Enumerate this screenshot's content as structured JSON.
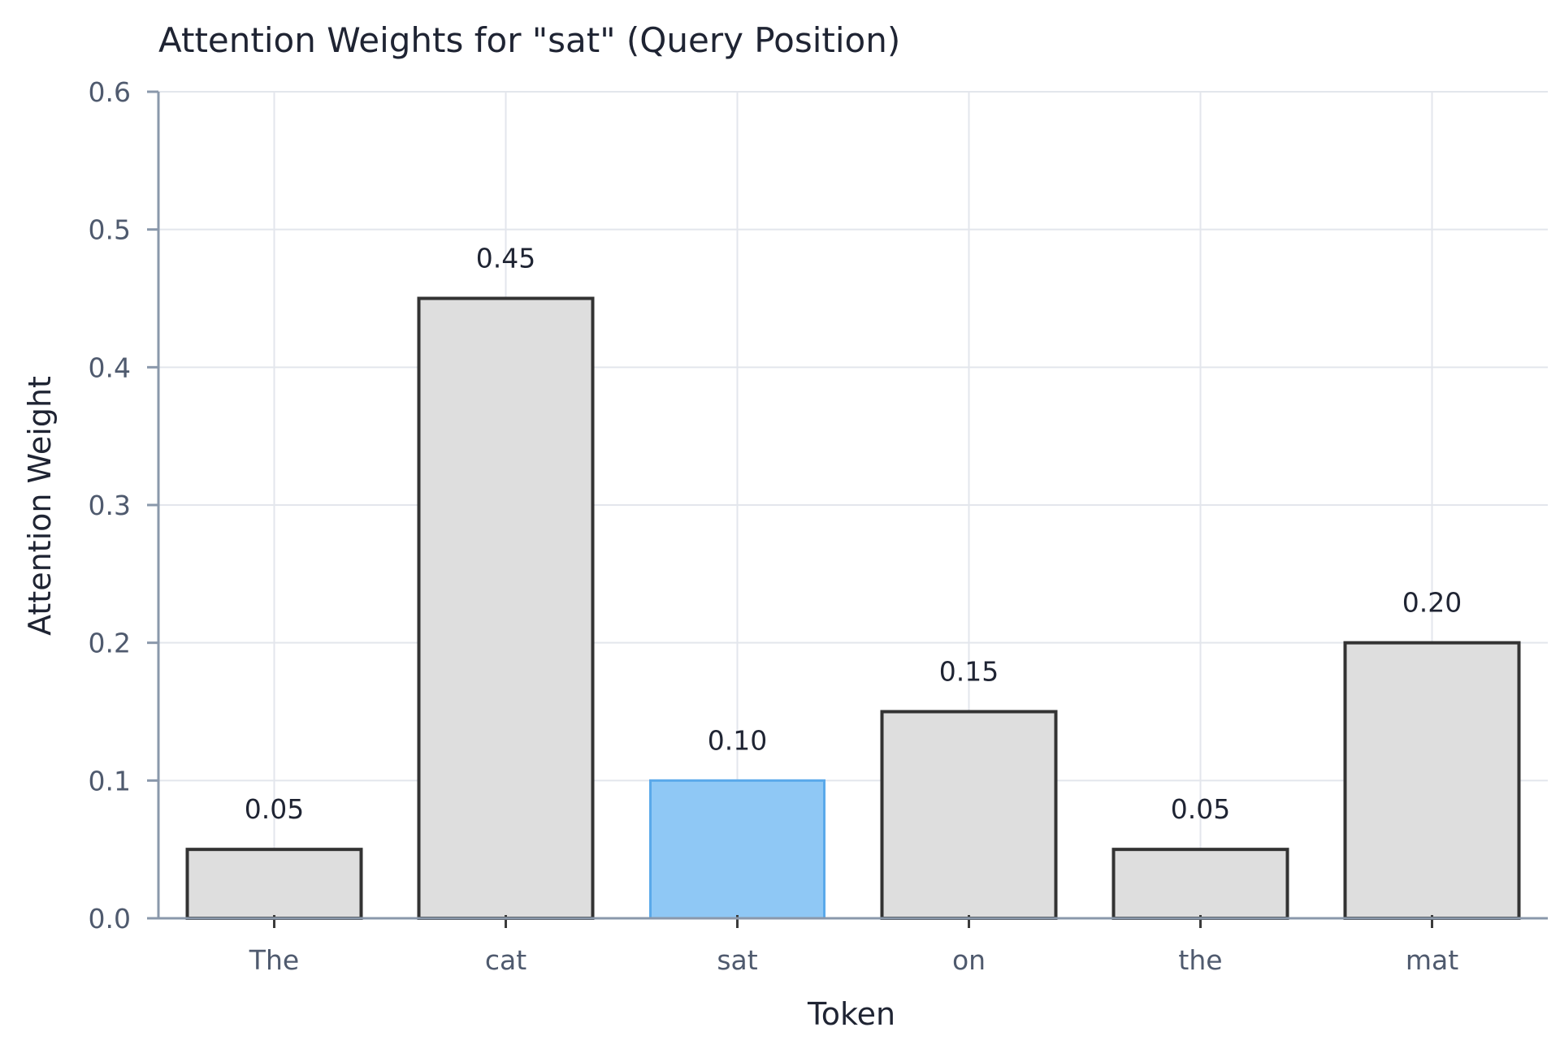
{
  "chart_data": {
    "type": "bar",
    "title": "Attention Weights for \"sat\" (Query Position)",
    "xlabel": "Token",
    "ylabel": "Attention Weight",
    "categories": [
      "The",
      "cat",
      "sat",
      "on",
      "the",
      "mat"
    ],
    "values": [
      0.05,
      0.45,
      0.1,
      0.15,
      0.05,
      0.2
    ],
    "value_labels": [
      "0.05",
      "0.45",
      "0.10",
      "0.15",
      "0.05",
      "0.20"
    ],
    "highlighted_category": "sat",
    "ylim": [
      0,
      0.6
    ],
    "yticks": [
      0.0,
      0.1,
      0.2,
      0.3,
      0.4,
      0.5,
      0.6
    ],
    "ytick_labels": [
      "0.0",
      "0.1",
      "0.2",
      "0.3",
      "0.4",
      "0.5",
      "0.6"
    ],
    "grid": true,
    "colors": {
      "bar_fill": "#dedede",
      "bar_stroke": "#333333",
      "highlight_fill": "#8fc8f5",
      "highlight_stroke": "#5aa9ea"
    }
  }
}
